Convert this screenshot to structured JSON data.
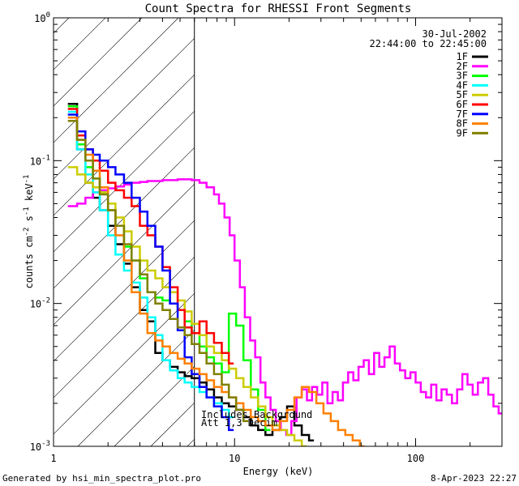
{
  "chart_data": {
    "type": "line",
    "title": "Count Spectra for RHESSI Front Segments",
    "xlabel": "Energy (keV)",
    "ylabel_parts": [
      "counts cm",
      "-2",
      " s",
      "-1",
      " keV",
      "-1"
    ],
    "xscale": "log",
    "yscale": "log",
    "xlim": [
      1,
      300
    ],
    "ylim": [
      0.001,
      1
    ],
    "x_ticks": [
      {
        "value": 1,
        "label": "1"
      },
      {
        "value": 10,
        "label": "10"
      },
      {
        "value": 100,
        "label": "100"
      }
    ],
    "y_ticks": [
      {
        "value": 0.001,
        "base": "10",
        "exp": "-3"
      },
      {
        "value": 0.01,
        "base": "10",
        "exp": "-2"
      },
      {
        "value": 0.1,
        "base": "10",
        "exp": "-1"
      },
      {
        "value": 1,
        "base": "10",
        "exp": "0"
      }
    ],
    "date": "30-Jul-2002",
    "time_range": "22:44:00 to 22:45:00",
    "shaded_region_upper_energy_kev": 6,
    "annotation_lines": [
      "Includes Background",
      "Att 1,3  Decim"
    ],
    "legend_position": "top-right",
    "series": [
      {
        "name": "1F",
        "color": "#000000",
        "x": [
          1.2,
          1.35,
          1.5,
          1.65,
          1.8,
          2.0,
          2.2,
          2.45,
          2.7,
          3.0,
          3.3,
          3.65,
          4.0,
          4.4,
          4.85,
          5.3,
          5.8,
          6.4,
          7.0,
          7.7,
          8.5,
          9.3,
          10.2,
          11.2,
          12.3,
          13.5,
          14.8,
          16.2,
          17.8,
          19.5,
          21.4,
          23.5,
          25.8
        ],
        "y": [
          0.25,
          0.12,
          0.07,
          0.055,
          0.045,
          0.035,
          0.026,
          0.019,
          0.013,
          0.009,
          0.0075,
          0.0045,
          0.004,
          0.0036,
          0.0033,
          0.0031,
          0.003,
          0.0028,
          0.0025,
          0.0022,
          0.002,
          0.0019,
          0.0018,
          0.0016,
          0.0014,
          0.0013,
          0.0012,
          0.0013,
          0.0016,
          0.0019,
          0.0014,
          0.0012,
          0.0011
        ]
      },
      {
        "name": "2F",
        "color": "#ff00ff",
        "x": [
          1.2,
          1.35,
          1.5,
          1.65,
          1.8,
          2.0,
          2.2,
          2.45,
          2.7,
          3.0,
          3.3,
          3.65,
          4.0,
          4.4,
          4.85,
          5.3,
          5.8,
          6.4,
          7.0,
          7.7,
          8.2,
          8.8,
          9.4,
          10.0,
          10.7,
          11.4,
          12.2,
          13.0,
          13.9,
          14.8,
          15.8,
          16.9,
          18.0,
          19.3,
          20.6,
          22.0,
          23.5,
          25.1,
          26.8,
          28.6,
          30.5,
          32.6,
          34.8,
          37.2,
          39.7,
          42.4,
          45.3,
          48.4,
          51.7,
          55.2,
          59.0,
          63.0,
          67.3,
          71.9,
          76.8,
          82.0,
          87.6,
          93.6,
          100,
          106.8,
          114.1,
          121.9,
          130.2,
          139.1,
          148.6,
          158.8,
          169.6,
          181.2,
          193.6,
          206.8,
          220.9,
          236,
          252.1,
          269.3,
          287.7
        ],
        "y": [
          0.048,
          0.05,
          0.055,
          0.06,
          0.062,
          0.064,
          0.066,
          0.068,
          0.07,
          0.071,
          0.072,
          0.072,
          0.073,
          0.073,
          0.074,
          0.074,
          0.073,
          0.07,
          0.065,
          0.058,
          0.05,
          0.04,
          0.03,
          0.02,
          0.013,
          0.008,
          0.0055,
          0.0042,
          0.0028,
          0.0022,
          0.0018,
          0.0015,
          0.0013,
          0.0012,
          0.0015,
          0.0022,
          0.0025,
          0.0021,
          0.0026,
          0.0023,
          0.0028,
          0.002,
          0.0024,
          0.0021,
          0.0028,
          0.0033,
          0.0029,
          0.0036,
          0.004,
          0.0032,
          0.0045,
          0.0036,
          0.0042,
          0.005,
          0.0038,
          0.0034,
          0.003,
          0.0033,
          0.0028,
          0.0024,
          0.0022,
          0.0027,
          0.0021,
          0.0025,
          0.0023,
          0.002,
          0.0025,
          0.0032,
          0.0027,
          0.0023,
          0.0028,
          0.003,
          0.0023,
          0.0019,
          0.0017
        ]
      },
      {
        "name": "3F",
        "color": "#00ff00",
        "x": [
          1.2,
          1.35,
          1.5,
          1.65,
          1.8,
          2.0,
          2.2,
          2.45,
          2.7,
          3.0,
          3.3,
          3.65,
          4.0,
          4.4,
          4.85,
          5.3,
          5.8,
          6.4,
          7.0,
          7.7,
          8.5,
          9.3,
          10.2,
          11.2,
          12.3,
          13.5,
          14.8
        ],
        "y": [
          0.24,
          0.13,
          0.09,
          0.075,
          0.06,
          0.045,
          0.035,
          0.025,
          0.02,
          0.015,
          0.012,
          0.011,
          0.0105,
          0.01,
          0.009,
          0.0075,
          0.0062,
          0.005,
          0.0042,
          0.0038,
          0.0033,
          0.0085,
          0.007,
          0.004,
          0.0025,
          0.0018,
          0.0013
        ]
      },
      {
        "name": "4F",
        "color": "#00ffff",
        "x": [
          1.2,
          1.35,
          1.5,
          1.65,
          1.8,
          2.0,
          2.2,
          2.45,
          2.7,
          3.0,
          3.3,
          3.65,
          4.0,
          4.4,
          4.85,
          5.3,
          5.8,
          6.4,
          7.0,
          7.7,
          8.5,
          9.3
        ],
        "y": [
          0.22,
          0.12,
          0.08,
          0.06,
          0.045,
          0.03,
          0.022,
          0.017,
          0.014,
          0.011,
          0.008,
          0.006,
          0.004,
          0.0034,
          0.003,
          0.0028,
          0.0026,
          0.0024,
          0.0022,
          0.002,
          0.0018,
          0.0016
        ]
      },
      {
        "name": "5F",
        "color": "#cccc00",
        "x": [
          1.2,
          1.35,
          1.5,
          1.65,
          1.8,
          2.0,
          2.2,
          2.45,
          2.7,
          3.0,
          3.3,
          3.65,
          4.0,
          4.4,
          4.85,
          5.3,
          5.8,
          6.4,
          7.0,
          7.7,
          8.5,
          9.3,
          10.2,
          11.2,
          12.3,
          13.5,
          14.8,
          16.2,
          17.8,
          19.5,
          21.4,
          23.5
        ],
        "y": [
          0.09,
          0.08,
          0.07,
          0.065,
          0.06,
          0.05,
          0.04,
          0.032,
          0.025,
          0.02,
          0.017,
          0.015,
          0.013,
          0.012,
          0.0105,
          0.0088,
          0.0072,
          0.006,
          0.005,
          0.0045,
          0.004,
          0.0035,
          0.003,
          0.0026,
          0.0022,
          0.0019,
          0.0016,
          0.0014,
          0.0013,
          0.0012,
          0.0011,
          0.001
        ]
      },
      {
        "name": "6F",
        "color": "#ff0000",
        "x": [
          1.2,
          1.35,
          1.5,
          1.65,
          1.8,
          2.0,
          2.2,
          2.45,
          2.7,
          3.0,
          3.3,
          3.65,
          4.0,
          4.4,
          4.85,
          5.3,
          5.8,
          6.4,
          7.0,
          7.7,
          8.5,
          9.3
        ],
        "y": [
          0.23,
          0.15,
          0.12,
          0.1,
          0.085,
          0.07,
          0.062,
          0.055,
          0.048,
          0.035,
          0.03,
          0.025,
          0.018,
          0.013,
          0.009,
          0.0068,
          0.0062,
          0.0075,
          0.0062,
          0.0053,
          0.0045,
          0.0038
        ]
      },
      {
        "name": "7F",
        "color": "#0000ff",
        "x": [
          1.2,
          1.35,
          1.5,
          1.65,
          1.8,
          2.0,
          2.2,
          2.45,
          2.7,
          3.0,
          3.3,
          3.65,
          4.0,
          4.4,
          4.85,
          5.3,
          5.8,
          6.4,
          7.0,
          7.7,
          8.5,
          9.3
        ],
        "y": [
          0.21,
          0.16,
          0.12,
          0.11,
          0.1,
          0.09,
          0.08,
          0.07,
          0.055,
          0.044,
          0.035,
          0.025,
          0.017,
          0.01,
          0.0065,
          0.0042,
          0.0032,
          0.0026,
          0.0022,
          0.0019,
          0.0016,
          0.0013
        ]
      },
      {
        "name": "8F",
        "color": "#ff8000",
        "x": [
          1.2,
          1.35,
          1.5,
          1.65,
          1.8,
          2.0,
          2.2,
          2.45,
          2.7,
          3.0,
          3.3,
          3.65,
          4.0,
          4.4,
          4.85,
          5.3,
          5.8,
          6.4,
          7.0,
          7.7,
          8.5,
          9.3,
          10.2,
          11.2,
          12.3,
          13.5,
          14.8,
          16.2,
          17.8,
          19.5,
          21.4,
          23.5,
          25.8,
          28.3,
          31.0,
          34.0,
          37.3,
          40.9,
          44.9,
          49.2
        ],
        "y": [
          0.2,
          0.14,
          0.11,
          0.085,
          0.065,
          0.045,
          0.03,
          0.02,
          0.012,
          0.0085,
          0.0062,
          0.0055,
          0.005,
          0.0045,
          0.0041,
          0.0038,
          0.0035,
          0.0032,
          0.0029,
          0.0026,
          0.0024,
          0.0022,
          0.002,
          0.0018,
          0.0016,
          0.0015,
          0.0014,
          0.0013,
          0.0015,
          0.0018,
          0.0022,
          0.0026,
          0.0024,
          0.002,
          0.0017,
          0.0015,
          0.0013,
          0.0012,
          0.0011,
          0.001
        ]
      },
      {
        "name": "9F",
        "color": "#808000",
        "x": [
          1.2,
          1.35,
          1.5,
          1.65,
          1.8,
          2.0,
          2.2,
          2.45,
          2.7,
          3.0,
          3.3,
          3.65,
          4.0,
          4.4,
          4.85,
          5.3,
          5.8,
          6.4,
          7.0,
          7.7,
          8.5,
          9.3,
          10.2,
          11.2
        ],
        "y": [
          0.19,
          0.14,
          0.1,
          0.075,
          0.058,
          0.045,
          0.035,
          0.026,
          0.02,
          0.016,
          0.012,
          0.01,
          0.009,
          0.0078,
          0.0068,
          0.006,
          0.0052,
          0.0045,
          0.0038,
          0.0032,
          0.0027,
          0.0022,
          0.0018,
          0.0015
        ]
      }
    ]
  },
  "footer": {
    "left": "Generated by hsi_min_spectra_plot.pro",
    "right": "8-Apr-2023 22:27"
  }
}
